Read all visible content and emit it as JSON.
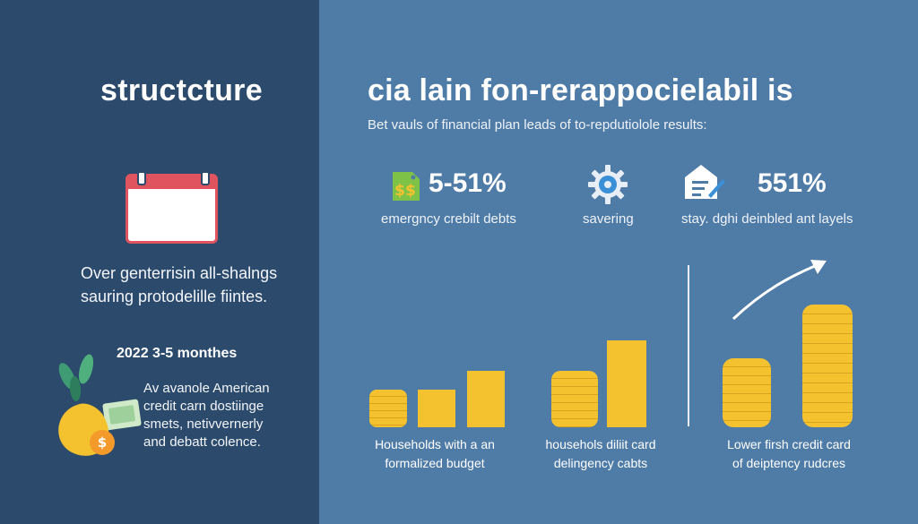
{
  "left_panel": {
    "title": "structcture",
    "paragraph": [
      "Over genterrisin all-shalngs",
      "sauring protodelille fiintes."
    ],
    "months_label": "2022 3-5 monthes",
    "paragraph2": [
      "Av avanole American",
      "credit carn dostiinge",
      "smets, netivvernerly",
      "and debatt colence."
    ]
  },
  "right_panel": {
    "title": "cia lain fon-rerappocielabil is",
    "subtitle": "Bet vauls of financial plan leads of to-repdutiolole results:",
    "stats": [
      {
        "value": "5-51%",
        "label": "emergncy crebilt debts"
      },
      {
        "value": "",
        "label": "savering"
      },
      {
        "value": "551%",
        "label": "stay. dghi deinbled ant layels"
      }
    ],
    "captions": [
      [
        "Households with a an",
        "formalized budget"
      ],
      [
        "househols diliit card",
        "delingency cabts"
      ],
      [
        "Lower firsh credit card",
        "of deiptency rudcres"
      ]
    ]
  },
  "icons": {
    "money_tag": "money-tag-icon",
    "gear": "gear-icon",
    "document": "document-icon",
    "calendar": "calendar-icon",
    "plant_coin_bag": "money-bag-plant-icon",
    "trend_arrow": "trend-arrow-icon"
  },
  "colors": {
    "left_bg": "#2b4a6c",
    "right_bg": "#4f7ba7",
    "coin_yellow": "#f5c22f",
    "accent_red": "#e05460",
    "accent_green": "#5aa64a"
  },
  "chart_data": [
    {
      "type": "bar",
      "categories": [
        "",
        "",
        "",
        ""
      ],
      "values": [
        3,
        4,
        6,
        null
      ]
    },
    {
      "type": "bar",
      "categories": [
        "",
        ""
      ],
      "values": [
        5,
        9
      ]
    },
    {
      "type": "bar",
      "categories": [
        "",
        ""
      ],
      "values": [
        6,
        11
      ]
    }
  ]
}
